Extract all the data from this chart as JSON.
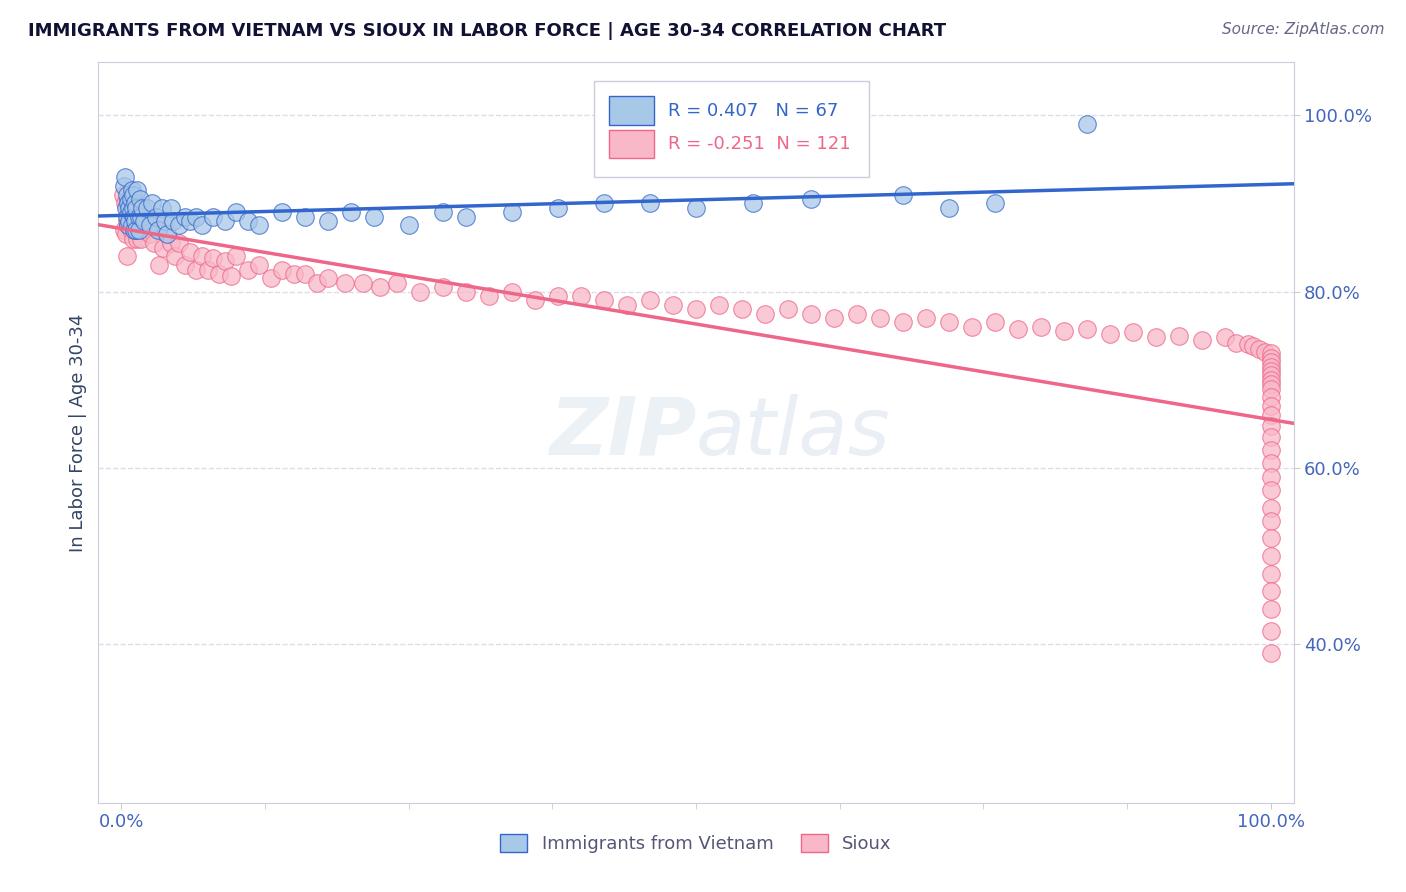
{
  "title": "IMMIGRANTS FROM VIETNAM VS SIOUX IN LABOR FORCE | AGE 30-34 CORRELATION CHART",
  "source": "Source: ZipAtlas.com",
  "ylabel": "In Labor Force | Age 30-34",
  "color_vietnam": "#A8C8E8",
  "color_sioux": "#F8B8C8",
  "color_vietnam_line": "#3366CC",
  "color_sioux_line": "#EE6688",
  "color_tick": "#4466BB",
  "color_ylabel": "#334466",
  "background_color": "#FFFFFF",
  "grid_color": "#DDDDEE",
  "watermark": "ZIPatlas",
  "legend_r_vietnam": "R = 0.407",
  "legend_n_vietnam": "N = 67",
  "legend_r_sioux": "R = -0.251",
  "legend_n_sioux": "N = 121",
  "vietnam_x": [
    0.002,
    0.003,
    0.004,
    0.005,
    0.005,
    0.006,
    0.006,
    0.007,
    0.007,
    0.008,
    0.008,
    0.009,
    0.009,
    0.01,
    0.01,
    0.011,
    0.011,
    0.012,
    0.012,
    0.013,
    0.013,
    0.014,
    0.015,
    0.015,
    0.016,
    0.017,
    0.018,
    0.02,
    0.022,
    0.025,
    0.027,
    0.03,
    0.032,
    0.035,
    0.038,
    0.04,
    0.043,
    0.045,
    0.05,
    0.055,
    0.06,
    0.065,
    0.07,
    0.08,
    0.09,
    0.1,
    0.11,
    0.12,
    0.14,
    0.16,
    0.18,
    0.2,
    0.22,
    0.25,
    0.28,
    0.3,
    0.34,
    0.38,
    0.42,
    0.46,
    0.5,
    0.55,
    0.6,
    0.68,
    0.72,
    0.76,
    0.84
  ],
  "vietnam_y": [
    0.92,
    0.93,
    0.895,
    0.885,
    0.91,
    0.9,
    0.875,
    0.895,
    0.88,
    0.905,
    0.89,
    0.915,
    0.875,
    0.895,
    0.91,
    0.885,
    0.87,
    0.9,
    0.88,
    0.895,
    0.87,
    0.915,
    0.885,
    0.87,
    0.905,
    0.885,
    0.895,
    0.88,
    0.895,
    0.875,
    0.9,
    0.885,
    0.87,
    0.895,
    0.88,
    0.865,
    0.895,
    0.88,
    0.875,
    0.885,
    0.88,
    0.885,
    0.875,
    0.885,
    0.88,
    0.89,
    0.88,
    0.875,
    0.89,
    0.885,
    0.88,
    0.89,
    0.885,
    0.875,
    0.89,
    0.885,
    0.89,
    0.895,
    0.9,
    0.9,
    0.895,
    0.9,
    0.905,
    0.91,
    0.895,
    0.9,
    0.99
  ],
  "sioux_x": [
    0.001,
    0.002,
    0.003,
    0.004,
    0.005,
    0.005,
    0.006,
    0.006,
    0.007,
    0.008,
    0.009,
    0.01,
    0.011,
    0.012,
    0.013,
    0.014,
    0.015,
    0.016,
    0.017,
    0.018,
    0.02,
    0.022,
    0.025,
    0.028,
    0.03,
    0.033,
    0.036,
    0.04,
    0.043,
    0.047,
    0.05,
    0.055,
    0.06,
    0.065,
    0.07,
    0.075,
    0.08,
    0.085,
    0.09,
    0.095,
    0.1,
    0.11,
    0.12,
    0.13,
    0.14,
    0.15,
    0.16,
    0.17,
    0.18,
    0.195,
    0.21,
    0.225,
    0.24,
    0.26,
    0.28,
    0.3,
    0.32,
    0.34,
    0.36,
    0.38,
    0.4,
    0.42,
    0.44,
    0.46,
    0.48,
    0.5,
    0.52,
    0.54,
    0.56,
    0.58,
    0.6,
    0.62,
    0.64,
    0.66,
    0.68,
    0.7,
    0.72,
    0.74,
    0.76,
    0.78,
    0.8,
    0.82,
    0.84,
    0.86,
    0.88,
    0.9,
    0.92,
    0.94,
    0.96,
    0.97,
    0.98,
    0.985,
    0.99,
    0.995,
    1.0,
    1.0,
    1.0,
    1.0,
    1.0,
    1.0,
    1.0,
    1.0,
    1.0,
    1.0,
    1.0,
    1.0,
    1.0,
    1.0,
    1.0,
    1.0,
    1.0,
    1.0,
    1.0,
    1.0,
    1.0,
    1.0,
    1.0,
    1.0,
    1.0,
    1.0,
    1.0
  ],
  "sioux_y": [
    0.91,
    0.87,
    0.9,
    0.865,
    0.88,
    0.84,
    0.905,
    0.875,
    0.895,
    0.87,
    0.885,
    0.86,
    0.895,
    0.87,
    0.88,
    0.86,
    0.895,
    0.87,
    0.86,
    0.89,
    0.87,
    0.875,
    0.865,
    0.855,
    0.875,
    0.83,
    0.85,
    0.865,
    0.855,
    0.84,
    0.855,
    0.83,
    0.845,
    0.825,
    0.84,
    0.825,
    0.838,
    0.82,
    0.835,
    0.818,
    0.84,
    0.825,
    0.83,
    0.815,
    0.825,
    0.82,
    0.82,
    0.81,
    0.815,
    0.81,
    0.81,
    0.805,
    0.81,
    0.8,
    0.805,
    0.8,
    0.795,
    0.8,
    0.79,
    0.795,
    0.795,
    0.79,
    0.785,
    0.79,
    0.785,
    0.78,
    0.785,
    0.78,
    0.775,
    0.78,
    0.775,
    0.77,
    0.775,
    0.77,
    0.765,
    0.77,
    0.765,
    0.76,
    0.765,
    0.758,
    0.76,
    0.755,
    0.758,
    0.752,
    0.754,
    0.748,
    0.75,
    0.745,
    0.748,
    0.742,
    0.74,
    0.738,
    0.735,
    0.732,
    0.73,
    0.725,
    0.72,
    0.715,
    0.71,
    0.705,
    0.7,
    0.695,
    0.69,
    0.68,
    0.67,
    0.66,
    0.648,
    0.635,
    0.62,
    0.605,
    0.59,
    0.575,
    0.555,
    0.54,
    0.52,
    0.5,
    0.48,
    0.46,
    0.44,
    0.415,
    0.39
  ],
  "xlim": [
    -0.02,
    1.02
  ],
  "ylim": [
    0.22,
    1.06
  ],
  "yticks": [
    0.4,
    0.6,
    0.8,
    1.0
  ],
  "ytick_labels": [
    "40.0%",
    "60.0%",
    "80.0%",
    "100.0%"
  ],
  "xticks": [
    0.0,
    1.0
  ],
  "xtick_labels": [
    "0.0%",
    "100.0%"
  ]
}
